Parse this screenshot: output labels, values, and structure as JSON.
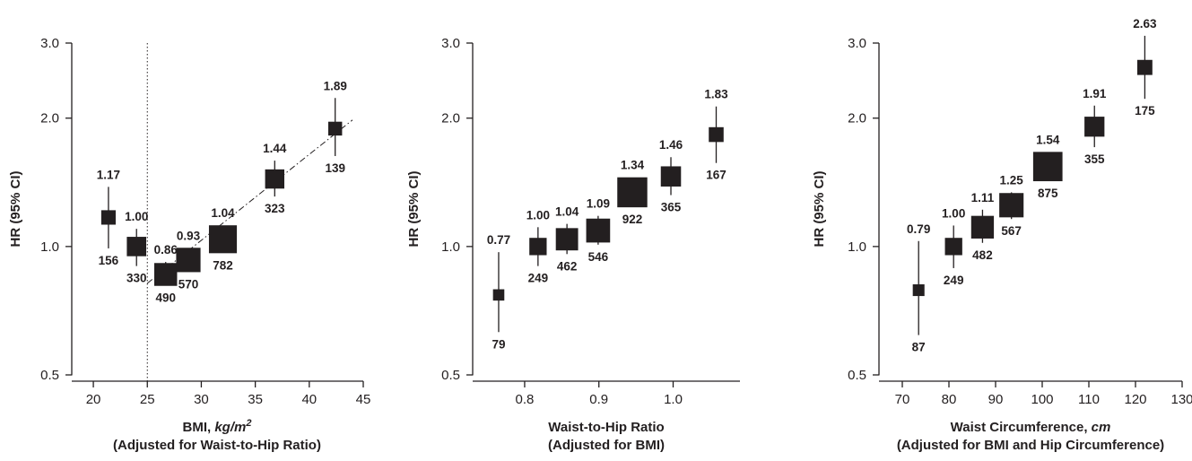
{
  "chart_data": [
    {
      "type": "scatter",
      "y_scale": "log",
      "ylim": [
        0.5,
        3.0
      ],
      "yticks": [
        0.5,
        1.0,
        2.0,
        3.0
      ],
      "ytick_labels": [
        "0.5",
        "1.0",
        "2.0",
        "3.0"
      ],
      "ylabel": "HR (95% CI)",
      "xlim": [
        18,
        45
      ],
      "xticks": [
        20,
        25,
        30,
        35,
        40,
        45
      ],
      "xtick_labels": [
        "20",
        "25",
        "30",
        "35",
        "40",
        "45"
      ],
      "xlabel": "BMI, ",
      "xlabel_italic": "kg/m",
      "xlabel_sup": "2",
      "xlabel_sub": "(Adjusted for Waist-to-Hip Ratio)",
      "points": [
        {
          "x": 21.4,
          "y": 1.17,
          "lo": 0.99,
          "hi": 1.38,
          "n": "156",
          "label": "1.17",
          "weight": 156
        },
        {
          "x": 24.0,
          "y": 1.0,
          "lo": 0.9,
          "hi": 1.1,
          "n": "330",
          "label": "1.00",
          "weight": 330
        },
        {
          "x": 26.7,
          "y": 0.86,
          "lo": 0.82,
          "hi": 0.92,
          "n": "490",
          "label": "0.86",
          "weight": 490
        },
        {
          "x": 28.8,
          "y": 0.93,
          "lo": 0.88,
          "hi": 0.99,
          "n": "570",
          "label": "0.93",
          "weight": 570
        },
        {
          "x": 32.0,
          "y": 1.04,
          "lo": 0.99,
          "hi": 1.1,
          "n": "782",
          "label": "1.04",
          "weight": 782
        },
        {
          "x": 36.8,
          "y": 1.44,
          "lo": 1.31,
          "hi": 1.59,
          "n": "323",
          "label": "1.44",
          "weight": 323
        },
        {
          "x": 42.4,
          "y": 1.89,
          "lo": 1.63,
          "hi": 2.23,
          "n": "139",
          "label": "1.89",
          "weight": 139
        }
      ],
      "reference_line_x": 25,
      "trend_line": {
        "x": [
          25,
          44
        ],
        "y": [
          0.82,
          1.98
        ]
      }
    },
    {
      "type": "scatter",
      "y_scale": "log",
      "ylim": [
        0.5,
        3.0
      ],
      "yticks": [
        0.5,
        1.0,
        2.0,
        3.0
      ],
      "ytick_labels": [
        "0.5",
        "1.0",
        "2.0",
        "3.0"
      ],
      "ylabel": "HR (95% CI)",
      "xlim": [
        0.73,
        1.09
      ],
      "xticks": [
        0.8,
        0.9,
        1.0
      ],
      "xtick_labels": [
        "0.8",
        "0.9",
        "1.0"
      ],
      "xlabel": "Waist-to-Hip Ratio",
      "xlabel_italic": "",
      "xlabel_sup": "",
      "xlabel_sub": "(Adjusted for BMI)",
      "points": [
        {
          "x": 0.765,
          "y": 0.77,
          "lo": 0.63,
          "hi": 0.97,
          "n": "79",
          "label": "0.77",
          "weight": 79
        },
        {
          "x": 0.818,
          "y": 1.0,
          "lo": 0.9,
          "hi": 1.11,
          "n": "249",
          "label": "1.00",
          "weight": 249
        },
        {
          "x": 0.857,
          "y": 1.04,
          "lo": 0.96,
          "hi": 1.13,
          "n": "462",
          "label": "1.04",
          "weight": 462
        },
        {
          "x": 0.899,
          "y": 1.09,
          "lo": 1.01,
          "hi": 1.18,
          "n": "546",
          "label": "1.09",
          "weight": 546
        },
        {
          "x": 0.945,
          "y": 1.34,
          "lo": 1.25,
          "hi": 1.43,
          "n": "922",
          "label": "1.34",
          "weight": 922
        },
        {
          "x": 0.997,
          "y": 1.46,
          "lo": 1.32,
          "hi": 1.62,
          "n": "365",
          "label": "1.46",
          "weight": 365
        },
        {
          "x": 1.058,
          "y": 1.83,
          "lo": 1.57,
          "hi": 2.13,
          "n": "167",
          "label": "1.83",
          "weight": 167
        }
      ]
    },
    {
      "type": "scatter",
      "y_scale": "log",
      "ylim": [
        0.5,
        3.0
      ],
      "yticks": [
        0.5,
        1.0,
        2.0,
        3.0
      ],
      "ytick_labels": [
        "0.5",
        "1.0",
        "2.0",
        "3.0"
      ],
      "ylabel": "HR (95% CI)",
      "xlim": [
        65,
        130
      ],
      "xticks": [
        70,
        80,
        90,
        100,
        110,
        120,
        130
      ],
      "xtick_labels": [
        "70",
        "80",
        "90",
        "100",
        "110",
        "120",
        "130"
      ],
      "xlabel": "Waist Circumference, ",
      "xlabel_italic": "cm",
      "xlabel_sup": "",
      "xlabel_sub": "(Adjusted for BMI and Hip Circumference)",
      "points": [
        {
          "x": 73.5,
          "y": 0.79,
          "lo": 0.62,
          "hi": 1.03,
          "n": "87",
          "label": "0.79",
          "weight": 87
        },
        {
          "x": 81.0,
          "y": 1.0,
          "lo": 0.89,
          "hi": 1.12,
          "n": "249",
          "label": "1.00",
          "weight": 249
        },
        {
          "x": 87.2,
          "y": 1.11,
          "lo": 1.02,
          "hi": 1.22,
          "n": "482",
          "label": "1.11",
          "weight": 482
        },
        {
          "x": 93.4,
          "y": 1.25,
          "lo": 1.16,
          "hi": 1.34,
          "n": "567",
          "label": "1.25",
          "weight": 567
        },
        {
          "x": 101.2,
          "y": 1.54,
          "lo": 1.44,
          "hi": 1.65,
          "n": "875",
          "label": "1.54",
          "weight": 875
        },
        {
          "x": 111.2,
          "y": 1.91,
          "lo": 1.71,
          "hi": 2.14,
          "n": "355",
          "label": "1.91",
          "weight": 355
        },
        {
          "x": 122.0,
          "y": 2.63,
          "lo": 2.22,
          "hi": 3.12,
          "n": "175",
          "label": "2.63",
          "weight": 175
        }
      ]
    }
  ]
}
